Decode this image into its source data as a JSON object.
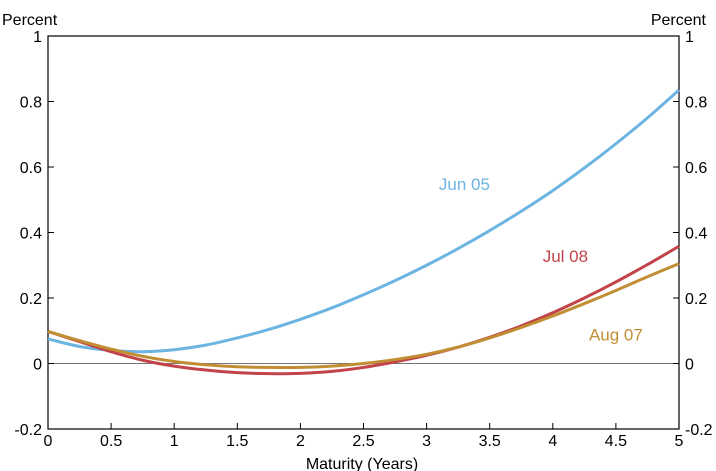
{
  "chart_data": {
    "type": "line",
    "title": "",
    "xlabel": "Maturity (Years)",
    "ylabel_left": "Percent",
    "ylabel_right": "Percent",
    "xlim": [
      0,
      5
    ],
    "ylim": [
      -0.2,
      1
    ],
    "x_ticks": [
      0,
      0.5,
      1,
      1.5,
      2,
      2.5,
      3,
      3.5,
      4,
      4.5,
      5
    ],
    "x_tick_labels": [
      "0",
      "0.5",
      "1",
      "1.5",
      "2",
      "2.5",
      "3",
      "3.5",
      "4",
      "4.5",
      "5"
    ],
    "y_ticks": [
      -0.2,
      0,
      0.2,
      0.4,
      0.6,
      0.8,
      1
    ],
    "y_tick_labels": [
      "-0.2",
      "0",
      "0.2",
      "0.4",
      "0.6",
      "0.8",
      "1"
    ],
    "grid": false,
    "zero_line": true,
    "legend": "inline labels",
    "x": [
      0,
      0.25,
      0.5,
      0.75,
      1,
      1.25,
      1.5,
      1.75,
      2,
      2.25,
      2.5,
      2.75,
      3,
      3.25,
      3.5,
      3.75,
      4,
      4.25,
      4.5,
      4.75,
      5
    ],
    "series": [
      {
        "name": "Jun 05",
        "color": "#6cb4e2",
        "values": [
          0.075,
          0.052,
          0.04,
          0.036,
          0.042,
          0.056,
          0.078,
          0.104,
          0.135,
          0.17,
          0.21,
          0.253,
          0.3,
          0.351,
          0.406,
          0.465,
          0.528,
          0.597,
          0.671,
          0.75,
          0.835
        ]
      },
      {
        "name": "Jul 08",
        "color": "#c2444a",
        "values": [
          0.098,
          0.067,
          0.036,
          0.01,
          -0.008,
          -0.02,
          -0.028,
          -0.031,
          -0.03,
          -0.024,
          -0.012,
          0.005,
          0.025,
          0.05,
          0.08,
          0.115,
          0.155,
          0.2,
          0.249,
          0.302,
          0.358
        ]
      },
      {
        "name": "Aug 07",
        "color": "#c18e34",
        "values": [
          0.098,
          0.07,
          0.044,
          0.022,
          0.006,
          -0.004,
          -0.01,
          -0.012,
          -0.012,
          -0.008,
          0.0,
          0.012,
          0.028,
          0.05,
          0.078,
          0.11,
          0.145,
          0.183,
          0.223,
          0.265,
          0.305
        ]
      }
    ],
    "annotations": [
      {
        "text": "Jun 05",
        "series": "Jun 05",
        "x": 3.3,
        "y": 0.53
      },
      {
        "text": "Jul 08",
        "series": "Jul 08",
        "x": 4.1,
        "y": 0.31
      },
      {
        "text": "Aug 07",
        "series": "Aug 07",
        "x": 4.5,
        "y": 0.07
      }
    ]
  }
}
